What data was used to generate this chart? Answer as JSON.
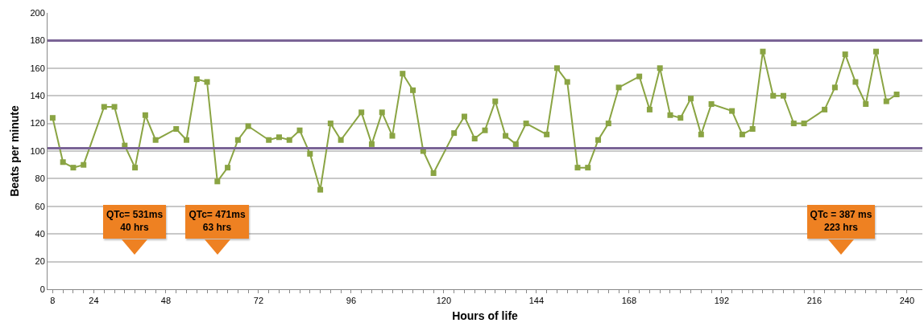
{
  "chart_data": {
    "type": "line",
    "xlabel": "Hours of life",
    "ylabel": "Beats per minute",
    "categories": [
      "8",
      null,
      null,
      null,
      "24",
      null,
      null,
      null,
      null,
      null,
      null,
      "48",
      null,
      null,
      null,
      null,
      null,
      null,
      null,
      null,
      "72",
      null,
      null,
      null,
      null,
      null,
      null,
      null,
      null,
      "96",
      null,
      null,
      null,
      null,
      null,
      null,
      null,
      null,
      "120",
      null,
      null,
      null,
      null,
      null,
      null,
      null,
      null,
      "144",
      null,
      null,
      null,
      null,
      null,
      null,
      null,
      null,
      "168",
      null,
      null,
      null,
      null,
      null,
      null,
      null,
      null,
      "192",
      null,
      null,
      null,
      null,
      null,
      null,
      null,
      null,
      "216",
      null,
      null,
      null,
      null,
      null,
      null,
      null,
      null,
      "240"
    ],
    "series": [
      {
        "color": "#8aa443",
        "values": [
          124,
          92,
          88,
          90,
          null,
          132,
          132,
          104,
          88,
          126,
          108,
          null,
          116,
          108,
          152,
          150,
          78,
          88,
          108,
          118,
          null,
          108,
          110,
          108,
          115,
          98,
          72,
          120,
          108,
          null,
          128,
          105,
          128,
          111,
          156,
          144,
          100,
          84,
          null,
          113,
          125,
          109,
          115,
          136,
          111,
          105,
          120,
          null,
          112,
          160,
          150,
          88,
          88,
          108,
          120,
          146,
          null,
          154,
          130,
          160,
          126,
          124,
          138,
          112,
          134,
          null,
          129,
          112,
          116,
          172,
          140,
          140,
          120,
          120,
          null,
          130,
          146,
          170,
          150,
          134,
          172,
          136,
          141,
          null
        ]
      }
    ],
    "ylim": [
      0,
      200
    ],
    "yticks": [
      0,
      20,
      40,
      60,
      80,
      100,
      120,
      140,
      160,
      180,
      200
    ],
    "grid": "y",
    "marker": "square",
    "line_style": "solid",
    "ref_lines": [
      {
        "axis": "y",
        "value": 180,
        "color": "#7a6496"
      },
      {
        "axis": "y",
        "value": 102,
        "color": "#7a6496"
      }
    ],
    "annotations": [
      "QTc= 531ms\n40 hrs",
      "QTc= 471ms\n63 hrs",
      "QTc = 387 ms\n223 hrs"
    ]
  }
}
